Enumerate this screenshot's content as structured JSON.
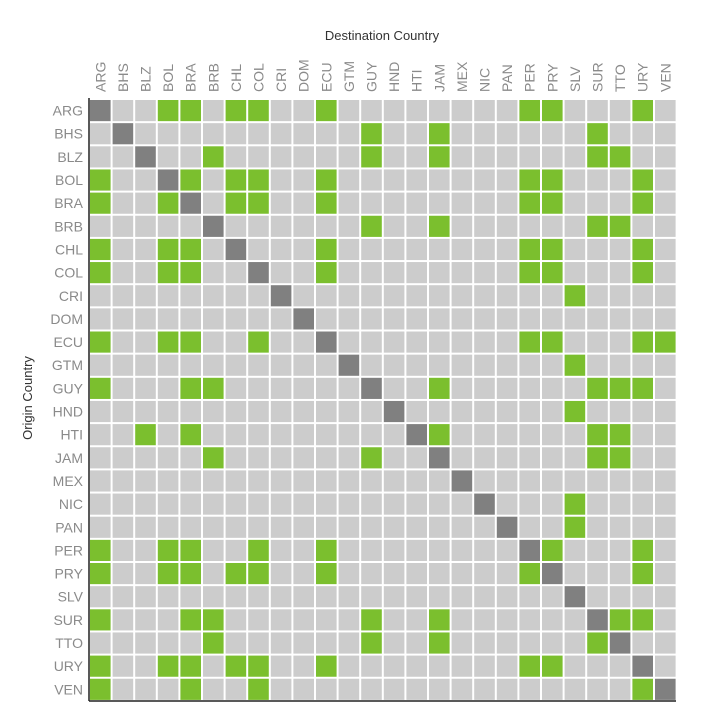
{
  "chart_data": {
    "type": "heatmap",
    "title": "",
    "xlabel": "Destination Country",
    "ylabel": "Origin Country",
    "countries": [
      "ARG",
      "BHS",
      "BLZ",
      "BOL",
      "BRA",
      "BRB",
      "CHL",
      "COL",
      "CRI",
      "DOM",
      "ECU",
      "GTM",
      "GUY",
      "HND",
      "HTI",
      "JAM",
      "MEX",
      "NIC",
      "PAN",
      "PER",
      "PRY",
      "SLV",
      "SUR",
      "TTO",
      "URY",
      "VEN"
    ],
    "colors": {
      "linked": "#7bbf2e",
      "not_linked": "#cccccc",
      "self": "#808080"
    },
    "values": [
      [
        2,
        0,
        0,
        1,
        1,
        0,
        1,
        1,
        0,
        0,
        1,
        0,
        0,
        0,
        0,
        0,
        0,
        0,
        0,
        1,
        1,
        0,
        0,
        0,
        1,
        0
      ],
      [
        0,
        2,
        0,
        0,
        0,
        0,
        0,
        0,
        0,
        0,
        0,
        0,
        1,
        0,
        0,
        1,
        0,
        0,
        0,
        0,
        0,
        0,
        1,
        0,
        0,
        0
      ],
      [
        0,
        0,
        2,
        0,
        0,
        1,
        0,
        0,
        0,
        0,
        0,
        0,
        1,
        0,
        0,
        1,
        0,
        0,
        0,
        0,
        0,
        0,
        1,
        1,
        0,
        0
      ],
      [
        1,
        0,
        0,
        2,
        1,
        0,
        1,
        1,
        0,
        0,
        1,
        0,
        0,
        0,
        0,
        0,
        0,
        0,
        0,
        1,
        1,
        0,
        0,
        0,
        1,
        0
      ],
      [
        1,
        0,
        0,
        1,
        2,
        0,
        1,
        1,
        0,
        0,
        1,
        0,
        0,
        0,
        0,
        0,
        0,
        0,
        0,
        1,
        1,
        0,
        0,
        0,
        1,
        0
      ],
      [
        0,
        0,
        0,
        0,
        0,
        2,
        0,
        0,
        0,
        0,
        0,
        0,
        1,
        0,
        0,
        1,
        0,
        0,
        0,
        0,
        0,
        0,
        1,
        1,
        0,
        0
      ],
      [
        1,
        0,
        0,
        1,
        1,
        0,
        2,
        0,
        0,
        0,
        1,
        0,
        0,
        0,
        0,
        0,
        0,
        0,
        0,
        1,
        1,
        0,
        0,
        0,
        1,
        0
      ],
      [
        1,
        0,
        0,
        1,
        1,
        0,
        0,
        2,
        0,
        0,
        1,
        0,
        0,
        0,
        0,
        0,
        0,
        0,
        0,
        1,
        1,
        0,
        0,
        0,
        1,
        0
      ],
      [
        0,
        0,
        0,
        0,
        0,
        0,
        0,
        0,
        2,
        0,
        0,
        0,
        0,
        0,
        0,
        0,
        0,
        0,
        0,
        0,
        0,
        1,
        0,
        0,
        0,
        0
      ],
      [
        0,
        0,
        0,
        0,
        0,
        0,
        0,
        0,
        0,
        2,
        0,
        0,
        0,
        0,
        0,
        0,
        0,
        0,
        0,
        0,
        0,
        0,
        0,
        0,
        0,
        0
      ],
      [
        1,
        0,
        0,
        1,
        1,
        0,
        0,
        1,
        0,
        0,
        2,
        0,
        0,
        0,
        0,
        0,
        0,
        0,
        0,
        1,
        1,
        0,
        0,
        0,
        1,
        1
      ],
      [
        0,
        0,
        0,
        0,
        0,
        0,
        0,
        0,
        0,
        0,
        0,
        2,
        0,
        0,
        0,
        0,
        0,
        0,
        0,
        0,
        0,
        1,
        0,
        0,
        0,
        0
      ],
      [
        1,
        0,
        0,
        0,
        1,
        1,
        0,
        0,
        0,
        0,
        0,
        0,
        2,
        0,
        0,
        1,
        0,
        0,
        0,
        0,
        0,
        0,
        1,
        1,
        1,
        0
      ],
      [
        0,
        0,
        0,
        0,
        0,
        0,
        0,
        0,
        0,
        0,
        0,
        0,
        0,
        2,
        0,
        0,
        0,
        0,
        0,
        0,
        0,
        1,
        0,
        0,
        0,
        0
      ],
      [
        0,
        0,
        1,
        0,
        1,
        0,
        0,
        0,
        0,
        0,
        0,
        0,
        0,
        0,
        2,
        1,
        0,
        0,
        0,
        0,
        0,
        0,
        1,
        1,
        0,
        0
      ],
      [
        0,
        0,
        0,
        0,
        0,
        1,
        0,
        0,
        0,
        0,
        0,
        0,
        1,
        0,
        0,
        2,
        0,
        0,
        0,
        0,
        0,
        0,
        1,
        1,
        0,
        0
      ],
      [
        0,
        0,
        0,
        0,
        0,
        0,
        0,
        0,
        0,
        0,
        0,
        0,
        0,
        0,
        0,
        0,
        2,
        0,
        0,
        0,
        0,
        0,
        0,
        0,
        0,
        0
      ],
      [
        0,
        0,
        0,
        0,
        0,
        0,
        0,
        0,
        0,
        0,
        0,
        0,
        0,
        0,
        0,
        0,
        0,
        2,
        0,
        0,
        0,
        1,
        0,
        0,
        0,
        0
      ],
      [
        0,
        0,
        0,
        0,
        0,
        0,
        0,
        0,
        0,
        0,
        0,
        0,
        0,
        0,
        0,
        0,
        0,
        0,
        2,
        0,
        0,
        1,
        0,
        0,
        0,
        0
      ],
      [
        1,
        0,
        0,
        1,
        1,
        0,
        0,
        1,
        0,
        0,
        1,
        0,
        0,
        0,
        0,
        0,
        0,
        0,
        0,
        2,
        1,
        0,
        0,
        0,
        1,
        0
      ],
      [
        1,
        0,
        0,
        1,
        1,
        0,
        1,
        1,
        0,
        0,
        1,
        0,
        0,
        0,
        0,
        0,
        0,
        0,
        0,
        1,
        2,
        0,
        0,
        0,
        1,
        0
      ],
      [
        0,
        0,
        0,
        0,
        0,
        0,
        0,
        0,
        0,
        0,
        0,
        0,
        0,
        0,
        0,
        0,
        0,
        0,
        0,
        0,
        0,
        2,
        0,
        0,
        0,
        0
      ],
      [
        1,
        0,
        0,
        0,
        1,
        1,
        0,
        0,
        0,
        0,
        0,
        0,
        1,
        0,
        0,
        1,
        0,
        0,
        0,
        0,
        0,
        0,
        2,
        1,
        1,
        0
      ],
      [
        0,
        0,
        0,
        0,
        0,
        1,
        0,
        0,
        0,
        0,
        0,
        0,
        1,
        0,
        0,
        1,
        0,
        0,
        0,
        0,
        0,
        0,
        1,
        2,
        0,
        0
      ],
      [
        1,
        0,
        0,
        1,
        1,
        0,
        1,
        1,
        0,
        0,
        1,
        0,
        0,
        0,
        0,
        0,
        0,
        0,
        0,
        1,
        1,
        0,
        0,
        0,
        2,
        0
      ],
      [
        1,
        0,
        0,
        0,
        1,
        0,
        0,
        1,
        0,
        0,
        0,
        0,
        0,
        0,
        0,
        0,
        0,
        0,
        0,
        0,
        0,
        0,
        0,
        0,
        1,
        2
      ]
    ]
  }
}
